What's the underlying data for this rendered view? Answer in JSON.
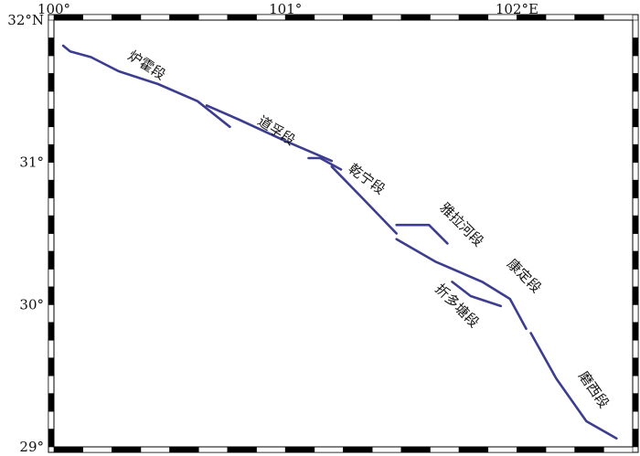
{
  "map": {
    "lon_range": [
      100,
      102.5
    ],
    "lat_range": [
      29,
      32
    ],
    "frame_style": "alternating black/white graduated border",
    "fault_color": "#3d3d8f",
    "top_ticks": [
      {
        "lon": 100,
        "label": "100°"
      },
      {
        "lon": 101,
        "label": "101°"
      },
      {
        "lon": 102,
        "label": "102°E"
      }
    ],
    "left_ticks": [
      {
        "lat": 32,
        "label": "32°N"
      },
      {
        "lat": 31,
        "label": "31°"
      },
      {
        "lat": 30,
        "label": "30°"
      },
      {
        "lat": 29,
        "label": "29°"
      }
    ],
    "segments": [
      {
        "name": "炉霍段",
        "label": "炉霍段",
        "points": [
          [
            100.04,
            31.82
          ],
          [
            100.07,
            31.78
          ],
          [
            100.16,
            31.74
          ],
          [
            100.28,
            31.64
          ],
          [
            100.45,
            31.55
          ],
          [
            100.62,
            31.43
          ],
          [
            100.76,
            31.25
          ]
        ]
      },
      {
        "name": "道孚段",
        "label": "道孚段",
        "points": [
          [
            100.66,
            31.4
          ],
          [
            100.8,
            31.3
          ],
          [
            101.0,
            31.15
          ],
          [
            101.2,
            31.01
          ]
        ]
      },
      {
        "name": "乾宁段-1",
        "label": "乾宁段",
        "points": [
          [
            101.1,
            31.03
          ],
          [
            101.15,
            31.03
          ],
          [
            101.24,
            30.95
          ]
        ]
      },
      {
        "name": "乾宁段-2",
        "label": "",
        "points": [
          [
            101.2,
            30.97
          ],
          [
            101.32,
            30.77
          ],
          [
            101.48,
            30.5
          ]
        ]
      },
      {
        "name": "雅拉河段",
        "label": "雅拉河段",
        "points": [
          [
            101.48,
            30.56
          ],
          [
            101.62,
            30.56
          ],
          [
            101.7,
            30.43
          ]
        ]
      },
      {
        "name": "康定段",
        "label": "康定段",
        "points": [
          [
            101.48,
            30.46
          ],
          [
            101.65,
            30.3
          ],
          [
            101.85,
            30.16
          ],
          [
            101.97,
            30.04
          ],
          [
            102.04,
            29.83
          ]
        ]
      },
      {
        "name": "折多塘段",
        "label": "折多塘段",
        "points": [
          [
            101.72,
            30.16
          ],
          [
            101.8,
            30.06
          ],
          [
            101.93,
            29.99
          ]
        ]
      },
      {
        "name": "磨西段",
        "label": "磨西段",
        "points": [
          [
            102.06,
            29.8
          ],
          [
            102.17,
            29.48
          ],
          [
            102.3,
            29.18
          ],
          [
            102.43,
            29.06
          ]
        ]
      }
    ],
    "segment_labels": [
      {
        "text": "炉霍段",
        "lon": 100.4,
        "lat": 31.68,
        "rotate": 33
      },
      {
        "text": "道孚段",
        "lon": 100.96,
        "lat": 31.22,
        "rotate": 33
      },
      {
        "text": "乾宁段",
        "lon": 101.35,
        "lat": 30.88,
        "rotate": 36
      },
      {
        "text": "雅拉河段",
        "lon": 101.76,
        "lat": 30.56,
        "rotate": 45
      },
      {
        "text": "康定段",
        "lon": 102.03,
        "lat": 30.2,
        "rotate": 45
      },
      {
        "text": "折多塘段",
        "lon": 101.74,
        "lat": 29.99,
        "rotate": 45
      },
      {
        "text": "磨西段",
        "lon": 102.33,
        "lat": 29.4,
        "rotate": 55
      }
    ]
  }
}
